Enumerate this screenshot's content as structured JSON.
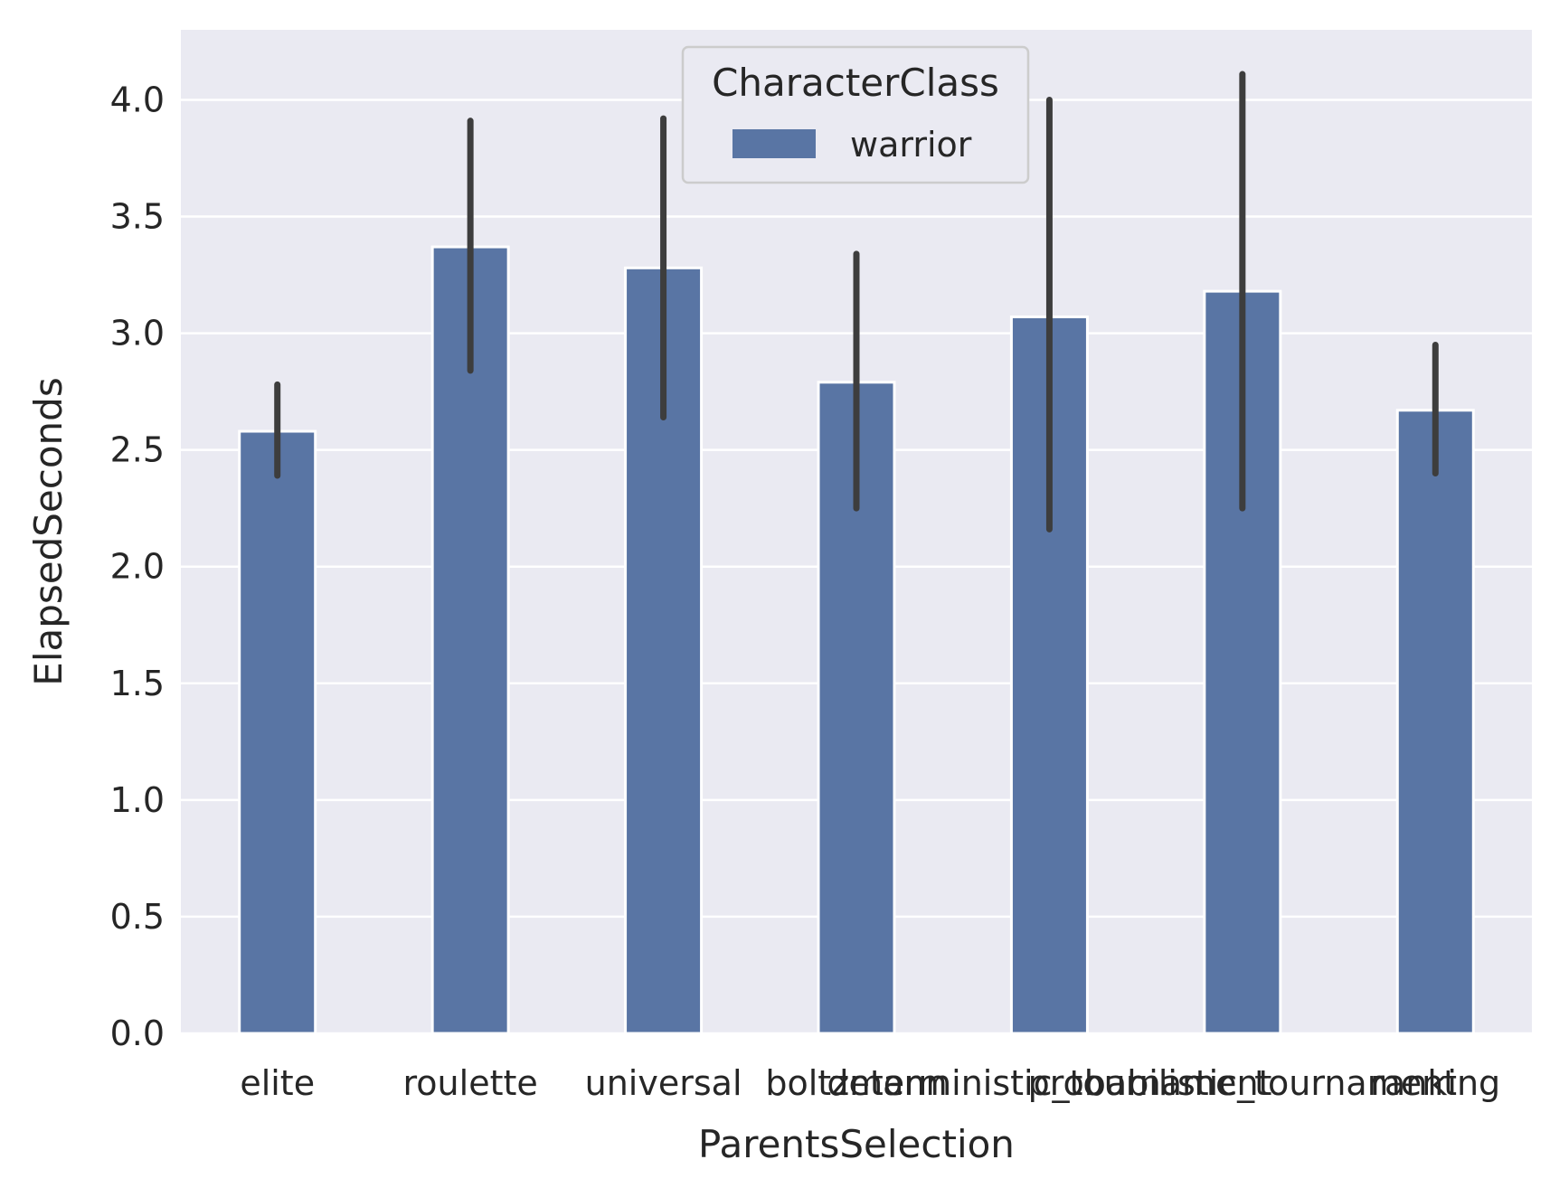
{
  "chart_data": {
    "type": "bar",
    "title": "",
    "xlabel": "ParentsSelection",
    "ylabel": "ElapsedSeconds",
    "categories": [
      "elite",
      "roulette",
      "universal",
      "boltzmann",
      "deterministic_tournament",
      "probabilistic_tournament",
      "ranking"
    ],
    "series": [
      {
        "name": "warrior",
        "values": [
          2.58,
          3.37,
          3.28,
          2.79,
          3.07,
          3.18,
          2.67
        ],
        "error_low": [
          2.39,
          2.84,
          2.64,
          2.25,
          2.16,
          2.25,
          2.4
        ],
        "error_high": [
          2.78,
          3.91,
          3.92,
          3.34,
          4.0,
          4.11,
          2.95
        ]
      }
    ],
    "ylim": [
      0,
      4.3
    ],
    "yticks": [
      0.0,
      0.5,
      1.0,
      1.5,
      2.0,
      2.5,
      3.0,
      3.5,
      4.0
    ],
    "ytick_labels": [
      "0.0",
      "0.5",
      "1.0",
      "1.5",
      "2.0",
      "2.5",
      "3.0",
      "3.5",
      "4.0"
    ],
    "grid": true,
    "legend": {
      "title": "CharacterClass",
      "placement": "top-center"
    },
    "colors": {
      "bar": "#5975a4",
      "error_bar": "#3d3d3d",
      "background": "#eaeaf2",
      "grid": "#ffffff"
    }
  }
}
